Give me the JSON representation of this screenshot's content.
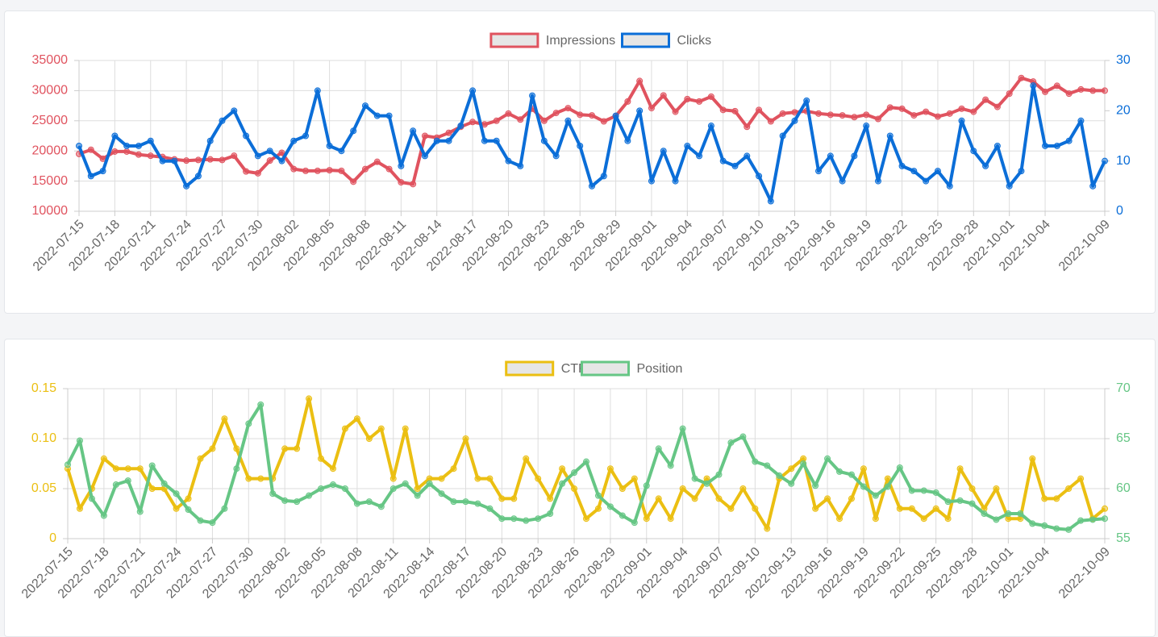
{
  "chart_data": [
    {
      "type": "line",
      "categories": [
        "2022-07-15",
        null,
        null,
        "2022-07-18",
        null,
        null,
        "2022-07-21",
        null,
        null,
        "2022-07-24",
        null,
        null,
        "2022-07-27",
        null,
        null,
        "2022-07-30",
        null,
        null,
        "2022-08-02",
        null,
        null,
        "2022-08-05",
        null,
        null,
        "2022-08-08",
        null,
        null,
        "2022-08-11",
        null,
        null,
        "2022-08-14",
        null,
        null,
        "2022-08-17",
        null,
        null,
        "2022-08-20",
        null,
        null,
        "2022-08-23",
        null,
        null,
        "2022-08-26",
        null,
        null,
        "2022-08-29",
        null,
        null,
        "2022-09-01",
        null,
        null,
        "2022-09-04",
        null,
        null,
        "2022-09-07",
        null,
        null,
        "2022-09-10",
        null,
        null,
        "2022-09-13",
        null,
        null,
        "2022-09-16",
        null,
        null,
        "2022-09-19",
        null,
        null,
        "2022-09-22",
        null,
        null,
        "2022-09-25",
        null,
        null,
        "2022-09-28",
        null,
        null,
        "2022-10-01",
        null,
        null,
        "2022-10-04",
        null,
        null,
        null,
        null,
        "2022-10-09"
      ],
      "series": [
        {
          "name": "Impressions",
          "color": "#e0535f",
          "axis": "y",
          "values": [
            19500,
            20200,
            18700,
            19900,
            19900,
            19400,
            19200,
            19000,
            18600,
            18400,
            18500,
            18600,
            18500,
            19200,
            16600,
            16300,
            18400,
            19700,
            17000,
            16700,
            16700,
            16800,
            16700,
            14900,
            17000,
            18200,
            17000,
            14800,
            14500,
            22500,
            22200,
            23000,
            24000,
            24800,
            24400,
            25000,
            26200,
            25200,
            27000,
            25000,
            26300,
            27100,
            26000,
            25900,
            24900,
            25800,
            28200,
            31600,
            27100,
            29200,
            26500,
            28600,
            28200,
            29000,
            26800,
            26600,
            24000,
            26800,
            24900,
            26200,
            26400,
            26600,
            26200,
            26000,
            25900,
            25600,
            26000,
            25300,
            27200,
            27000,
            25900,
            26500,
            25700,
            26200,
            27000,
            26500,
            28500,
            27300,
            29500,
            32100,
            31500,
            29800,
            30800,
            29500,
            30200,
            30000,
            30000
          ]
        },
        {
          "name": "Clicks",
          "color": "#0b6ed8",
          "axis": "y2",
          "values": [
            13,
            7,
            8,
            15,
            13,
            13,
            14,
            10,
            10,
            5,
            7,
            14,
            18,
            20,
            15,
            11,
            12,
            10,
            14,
            15,
            24,
            13,
            12,
            16,
            21,
            19,
            19,
            9,
            16,
            11,
            14,
            14,
            17,
            24,
            14,
            14,
            10,
            9,
            23,
            14,
            11,
            18,
            13,
            5,
            7,
            19,
            14,
            20,
            6,
            12,
            6,
            13,
            11,
            17,
            10,
            9,
            11,
            7,
            2,
            15,
            18,
            22,
            8,
            11,
            6,
            11,
            17,
            6,
            15,
            9,
            8,
            6,
            8,
            5,
            18,
            12,
            9,
            13,
            5,
            8,
            25,
            13,
            13,
            14,
            18,
            5,
            10
          ]
        }
      ],
      "ylim": [
        10000,
        35000
      ],
      "yticks": [
        10000,
        15000,
        20000,
        25000,
        30000,
        35000
      ],
      "y2lim": [
        0,
        30
      ],
      "y2ticks": [
        0,
        10,
        20,
        30
      ],
      "grid": true,
      "legend": "top"
    },
    {
      "type": "line",
      "categories": [
        "2022-07-15",
        null,
        null,
        "2022-07-18",
        null,
        null,
        "2022-07-21",
        null,
        null,
        "2022-07-24",
        null,
        null,
        "2022-07-27",
        null,
        null,
        "2022-07-30",
        null,
        null,
        "2022-08-02",
        null,
        null,
        "2022-08-05",
        null,
        null,
        "2022-08-08",
        null,
        null,
        "2022-08-11",
        null,
        null,
        "2022-08-14",
        null,
        null,
        "2022-08-17",
        null,
        null,
        "2022-08-20",
        null,
        null,
        "2022-08-23",
        null,
        null,
        "2022-08-26",
        null,
        null,
        "2022-08-29",
        null,
        null,
        "2022-09-01",
        null,
        null,
        "2022-09-04",
        null,
        null,
        "2022-09-07",
        null,
        null,
        "2022-09-10",
        null,
        null,
        "2022-09-13",
        null,
        null,
        "2022-09-16",
        null,
        null,
        "2022-09-19",
        null,
        null,
        "2022-09-22",
        null,
        null,
        "2022-09-25",
        null,
        null,
        "2022-09-28",
        null,
        null,
        "2022-10-01",
        null,
        null,
        "2022-10-04",
        null,
        null,
        null,
        null,
        "2022-10-09"
      ],
      "series": [
        {
          "name": "CTR",
          "color": "#ebbf12",
          "axis": "y",
          "values": [
            0.07,
            0.03,
            0.05,
            0.08,
            0.07,
            0.07,
            0.07,
            0.05,
            0.05,
            0.03,
            0.04,
            0.08,
            0.09,
            0.12,
            0.09,
            0.06,
            0.06,
            0.06,
            0.09,
            0.09,
            0.14,
            0.08,
            0.07,
            0.11,
            0.12,
            0.1,
            0.11,
            0.06,
            0.11,
            0.05,
            0.06,
            0.06,
            0.07,
            0.1,
            0.06,
            0.06,
            0.04,
            0.04,
            0.08,
            0.06,
            0.04,
            0.07,
            0.05,
            0.02,
            0.03,
            0.07,
            0.05,
            0.06,
            0.02,
            0.04,
            0.02,
            0.05,
            0.04,
            0.06,
            0.04,
            0.03,
            0.05,
            0.03,
            0.01,
            0.06,
            0.07,
            0.08,
            0.03,
            0.04,
            0.02,
            0.04,
            0.07,
            0.02,
            0.06,
            0.03,
            0.03,
            0.02,
            0.03,
            0.02,
            0.07,
            0.05,
            0.03,
            0.05,
            0.02,
            0.02,
            0.08,
            0.04,
            0.04,
            0.05,
            0.06,
            0.02,
            0.03
          ]
        },
        {
          "name": "Position",
          "color": "#66c685",
          "axis": "y2",
          "values": [
            62.4,
            64.8,
            59,
            57.3,
            60.4,
            60.8,
            57.7,
            62.3,
            60.5,
            59.5,
            57.9,
            56.8,
            56.6,
            58,
            62,
            66.5,
            68.4,
            59.5,
            58.8,
            58.7,
            59.3,
            60,
            60.4,
            60,
            58.5,
            58.7,
            58.2,
            60,
            60.5,
            59.3,
            60.5,
            59.5,
            58.7,
            58.7,
            58.5,
            58,
            57,
            57,
            56.8,
            57,
            57.5,
            60.5,
            61.6,
            62.7,
            59.3,
            58.2,
            57.3,
            56.6,
            60.3,
            64,
            62.3,
            66,
            61,
            60.5,
            61.4,
            64.6,
            65.2,
            62.7,
            62.3,
            61.3,
            60.5,
            62.5,
            60.3,
            63,
            61.7,
            61.4,
            60.2,
            59.3,
            60.2,
            62.1,
            59.8,
            59.8,
            59.6,
            58.7,
            58.8,
            58.5,
            57.5,
            56.9,
            57.5,
            57.5,
            56.5,
            56.3,
            56,
            55.9,
            56.8,
            56.9,
            57
          ]
        }
      ],
      "ylim": [
        0,
        0.15
      ],
      "yticks": [
        0,
        0.05,
        {
          "value": 0.1,
          "label": "0.10"
        },
        0.15
      ],
      "y2lim": [
        55,
        70
      ],
      "y2ticks": [
        55,
        60,
        65,
        70
      ],
      "grid": true,
      "legend": "top"
    }
  ]
}
